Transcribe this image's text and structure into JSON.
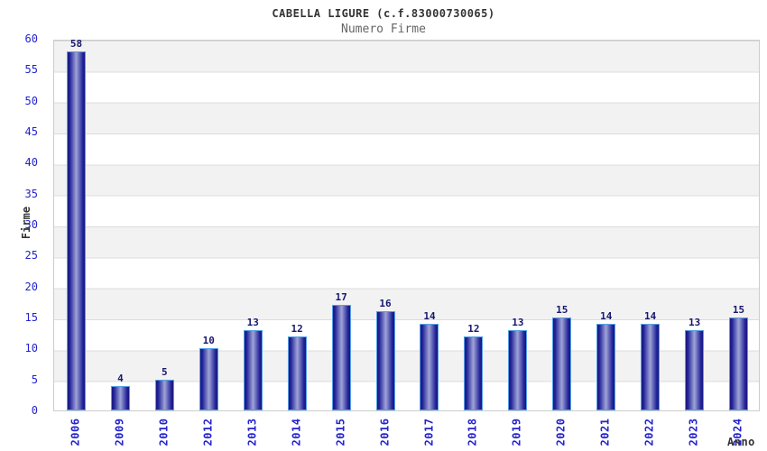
{
  "chart_data": {
    "type": "bar",
    "title": "CABELLA LIGURE (c.f.83000730065)",
    "subtitle": "Numero Firme",
    "categories": [
      "2006",
      "2009",
      "2010",
      "2012",
      "2013",
      "2014",
      "2015",
      "2016",
      "2017",
      "2018",
      "2019",
      "2020",
      "2021",
      "2022",
      "2023",
      "2024"
    ],
    "values": [
      58,
      4,
      5,
      10,
      13,
      12,
      17,
      16,
      14,
      12,
      13,
      15,
      14,
      14,
      13,
      15
    ],
    "xlabel": "Anno",
    "ylabel": "Firme",
    "ylim": [
      0,
      60
    ],
    "yticks": [
      0,
      5,
      10,
      15,
      20,
      25,
      30,
      35,
      40,
      45,
      50,
      55,
      60
    ],
    "grid": true,
    "legend_position": "none",
    "band_fill": true,
    "colors": {
      "tick_label": "#2323cd",
      "value_label": "#17176e",
      "title": "#333333",
      "subtitle": "#666666",
      "axis_title": "#333333",
      "bar_border": "#55a0e5",
      "bar_dark": "#17177e",
      "bar_light": "#9fa4d6",
      "band_gray": "#f2f2f2",
      "gridline": "#dcdcdc",
      "plot_border": "#cccccc",
      "background": "#ffffff"
    }
  }
}
